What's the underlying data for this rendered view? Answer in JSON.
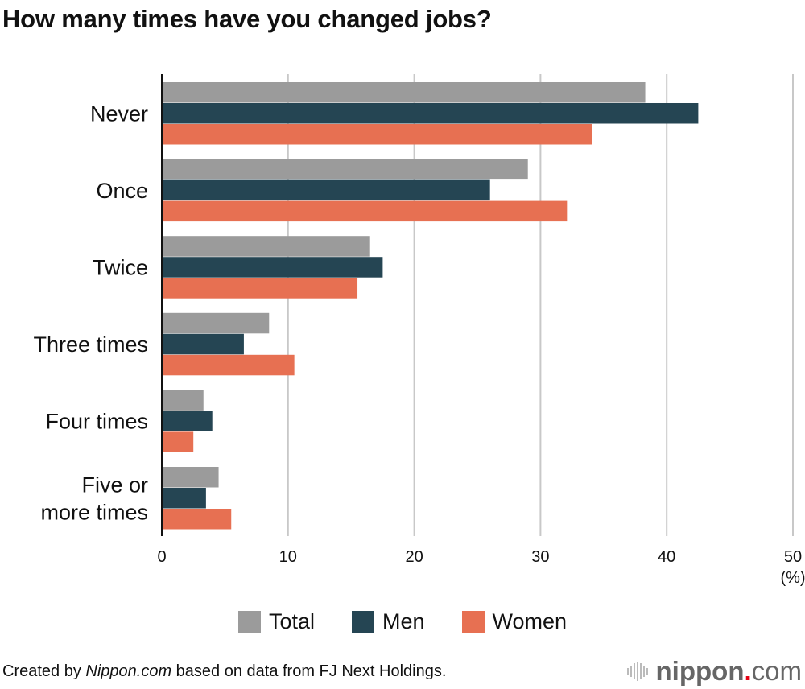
{
  "chart_data": {
    "type": "bar",
    "orientation": "horizontal",
    "title": "How many times have you changed jobs?",
    "categories": [
      "Never",
      "Once",
      "Twice",
      "Three times",
      "Four times",
      "Five or\nmore times"
    ],
    "series": [
      {
        "name": "Total",
        "color": "#9b9b9b",
        "values": [
          38.3,
          29.0,
          16.5,
          8.5,
          3.3,
          4.5
        ]
      },
      {
        "name": "Men",
        "color": "#254553",
        "values": [
          42.5,
          26.0,
          17.5,
          6.5,
          4.0,
          3.5
        ]
      },
      {
        "name": "Women",
        "color": "#e77052",
        "values": [
          34.1,
          32.1,
          15.5,
          10.5,
          2.5,
          5.5
        ]
      }
    ],
    "xlim": [
      0,
      50
    ],
    "xticks": [
      "0",
      "10",
      "20",
      "30",
      "40",
      "50"
    ],
    "xunit": "(%)",
    "grid": true,
    "legend": "bottom"
  },
  "footer": {
    "prefix": "Created by ",
    "source_site": "Nippon.com",
    "suffix": " based on data from FJ Next Holdings."
  },
  "logo": {
    "name": "nippon",
    "dot": ".",
    "tld": "com"
  }
}
